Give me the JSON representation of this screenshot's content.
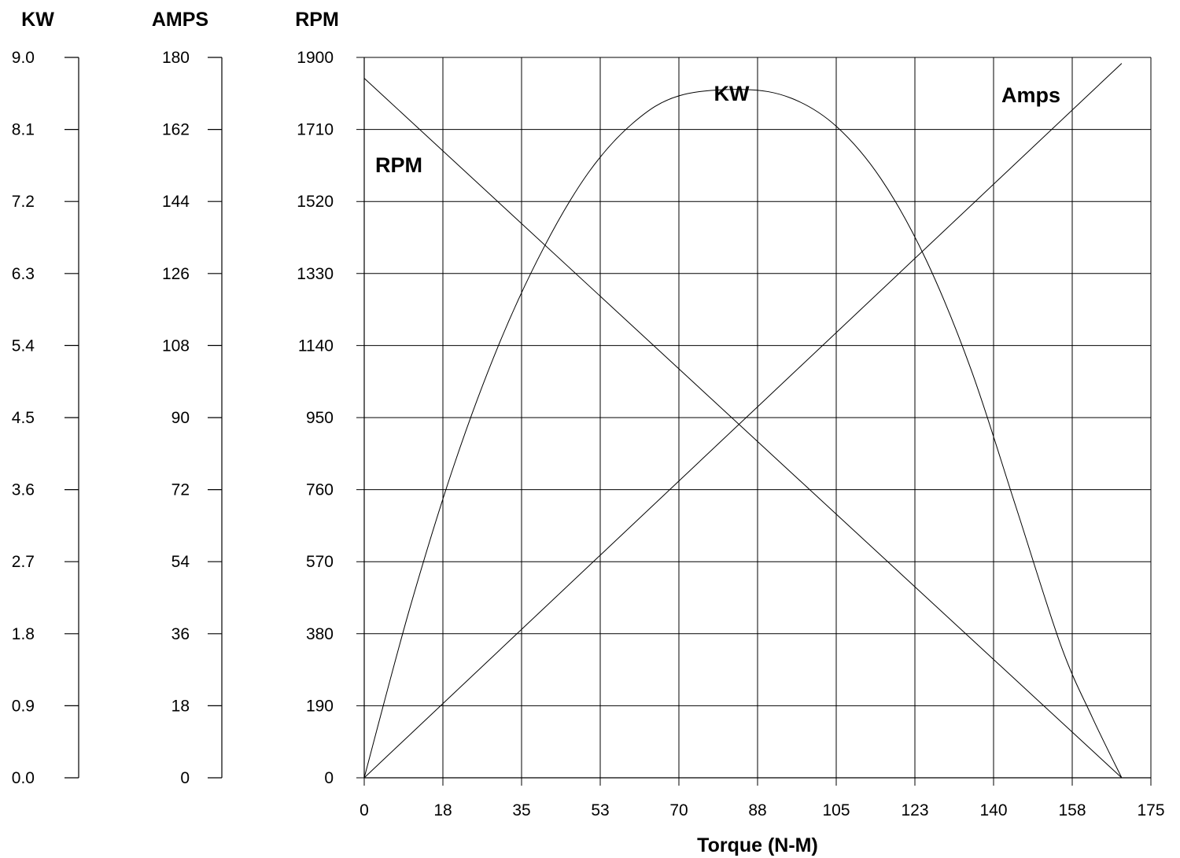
{
  "chart_data": {
    "type": "line",
    "xlabel": "Torque (N-M)",
    "x_ticks": [
      "0",
      "18",
      "35",
      "53",
      "70",
      "88",
      "105",
      "123",
      "140",
      "158",
      "175"
    ],
    "xlim": [
      0,
      175
    ],
    "grid": true,
    "axes": {
      "kw": {
        "title": "KW",
        "ticks": [
          "0.0",
          "0.9",
          "1.8",
          "2.7",
          "3.6",
          "4.5",
          "5.4",
          "6.3",
          "7.2",
          "8.1",
          "9.0"
        ],
        "range": [
          0,
          9
        ]
      },
      "amps": {
        "title": "AMPS",
        "ticks": [
          "0",
          "18",
          "36",
          "54",
          "72",
          "90",
          "108",
          "126",
          "144",
          "162",
          "180"
        ],
        "range": [
          0,
          180
        ]
      },
      "rpm": {
        "title": "RPM",
        "ticks": [
          "0",
          "190",
          "380",
          "570",
          "760",
          "950",
          "1140",
          "1330",
          "1520",
          "1710",
          "1900"
        ],
        "range": [
          0,
          1900
        ]
      }
    },
    "series": [
      {
        "name": "RPM",
        "axis": "rpm",
        "points": [
          [
            0,
            1845
          ],
          [
            168.5,
            0
          ]
        ]
      },
      {
        "name": "Amps",
        "axis": "amps",
        "points": [
          [
            0,
            0
          ],
          [
            168.5,
            178.5
          ]
        ]
      },
      {
        "name": "KW",
        "axis": "kw",
        "points": [
          [
            0,
            0
          ],
          [
            10,
            2.09
          ],
          [
            20,
            3.91
          ],
          [
            30,
            5.42
          ],
          [
            40,
            6.63
          ],
          [
            50,
            7.57
          ],
          [
            60,
            8.19
          ],
          [
            70,
            8.52
          ],
          [
            84.25,
            8.6
          ],
          [
            95,
            8.49
          ],
          [
            105,
            8.14
          ],
          [
            115,
            7.48
          ],
          [
            125,
            6.47
          ],
          [
            135,
            5.1
          ],
          [
            145,
            3.38
          ],
          [
            155,
            1.65
          ],
          [
            162,
            0.75
          ],
          [
            168.5,
            0
          ]
        ]
      }
    ]
  }
}
